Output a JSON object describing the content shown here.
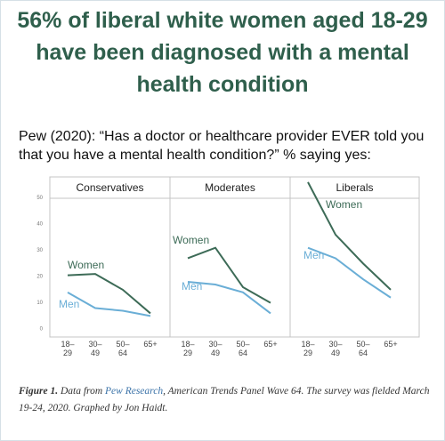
{
  "headline": "56% of liberal white women aged 18-29 have been diagnosed with a mental health condition",
  "subtitle": "Pew (2020): “Has a doctor or healthcare provider EVER told you that you have a mental health condition?” % saying yes:",
  "caption": {
    "label": "Figure 1.",
    "before": "Data from ",
    "source": "Pew Research",
    "after": ", American Trends Panel Wave 64. The survey was fielded March 19-24, 2020. Graphed by Jon Haidt."
  },
  "chart_data": [
    {
      "type": "line",
      "title": "Conservatives",
      "categories": [
        "18–29",
        "30–49",
        "50–64",
        "65+"
      ],
      "series": [
        {
          "name": "Women",
          "color": "#3d6b57",
          "values": [
            20.5,
            21,
            15,
            6
          ]
        },
        {
          "name": "Men",
          "color": "#6aaed6",
          "values": [
            14,
            8,
            7,
            5
          ]
        }
      ],
      "ylim": [
        -3,
        58
      ],
      "yticks": [
        0,
        10,
        20,
        30,
        40,
        50
      ]
    },
    {
      "type": "line",
      "title": "Moderates",
      "categories": [
        "18–29",
        "30–49",
        "50–64",
        "65+"
      ],
      "series": [
        {
          "name": "Women",
          "color": "#3d6b57",
          "values": [
            27,
            31,
            16,
            10
          ]
        },
        {
          "name": "Men",
          "color": "#6aaed6",
          "values": [
            18,
            17,
            14,
            6
          ]
        }
      ],
      "ylim": [
        -3,
        58
      ]
    },
    {
      "type": "line",
      "title": "Liberals",
      "categories": [
        "18–29",
        "30–49",
        "50–64",
        "65+"
      ],
      "series": [
        {
          "name": "Women",
          "color": "#3d6b57",
          "values": [
            56,
            36,
            25,
            15
          ]
        },
        {
          "name": "Men",
          "color": "#6aaed6",
          "values": [
            31,
            27,
            19,
            12
          ]
        }
      ],
      "ylim": [
        -3,
        58
      ]
    }
  ]
}
